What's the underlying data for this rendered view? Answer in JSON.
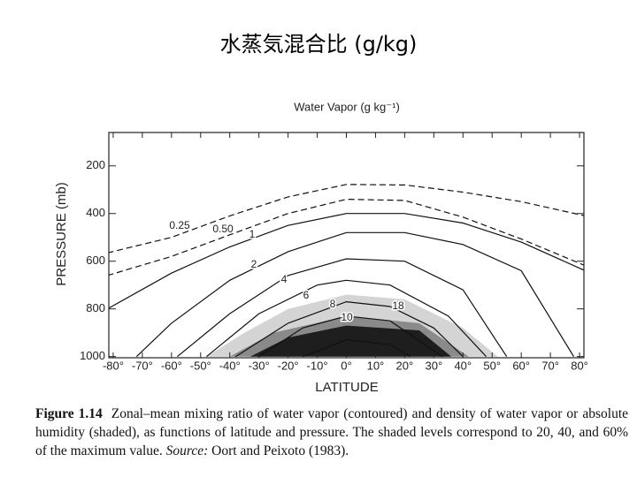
{
  "slide_title": "水蒸気混合比 (g/kg)",
  "chart_data": {
    "type": "contour",
    "title": "Water Vapor (g kg⁻¹)",
    "xlabel": "LATITUDE",
    "ylabel": "PRESSURE (mb)",
    "xlim": [
      -81.5,
      81.5
    ],
    "ylim": [
      1005,
      60
    ],
    "xticks": [
      {
        "value": -80,
        "label": "-80°"
      },
      {
        "value": -70,
        "label": "-70°"
      },
      {
        "value": -60,
        "label": "-60°"
      },
      {
        "value": -50,
        "label": "-50°"
      },
      {
        "value": -40,
        "label": "-40°"
      },
      {
        "value": -30,
        "label": "-30°"
      },
      {
        "value": -20,
        "label": "-20°"
      },
      {
        "value": -10,
        "label": "-10°"
      },
      {
        "value": 0,
        "label": "0°"
      },
      {
        "value": 10,
        "label": "10°"
      },
      {
        "value": 20,
        "label": "20°"
      },
      {
        "value": 30,
        "label": "30°"
      },
      {
        "value": 40,
        "label": "40°"
      },
      {
        "value": 50,
        "label": "50°"
      },
      {
        "value": 60,
        "label": "60°"
      },
      {
        "value": 70,
        "label": "70°"
      },
      {
        "value": 80,
        "label": "80°"
      }
    ],
    "yticks": [
      200,
      400,
      600,
      800,
      1000
    ],
    "shading": [
      {
        "color": "#d4d4d4",
        "x": [
          -48,
          -35,
          -20,
          0,
          20,
          40,
          52
        ],
        "y": [
          1000,
          900,
          800,
          740,
          760,
          880,
          1000
        ]
      },
      {
        "color": "#8a8a8a",
        "x": [
          -40,
          -25,
          0,
          25,
          42
        ],
        "y": [
          1000,
          900,
          830,
          860,
          1000
        ]
      },
      {
        "color": "#1e1e1e",
        "x": [
          -33,
          -20,
          0,
          25,
          36
        ],
        "y": [
          1000,
          920,
          870,
          890,
          1000
        ]
      }
    ],
    "contours": [
      {
        "level": 0.25,
        "style": "dashed",
        "x": [
          -82,
          -60,
          -40,
          -20,
          0,
          20,
          40,
          60,
          82
        ],
        "y": [
          565,
          500,
          410,
          330,
          278,
          280,
          310,
          350,
          410
        ]
      },
      {
        "level": 0.5,
        "label": "0.50",
        "style": "dashed",
        "x": [
          -82,
          -60,
          -40,
          -20,
          0,
          20,
          40,
          60,
          82
        ],
        "y": [
          660,
          580,
          489,
          400,
          340,
          345,
          415,
          507,
          619
        ]
      },
      {
        "level": 1,
        "style": "solid",
        "x": [
          -82,
          -60,
          -40,
          -20,
          0,
          20,
          40,
          60,
          82
        ],
        "y": [
          800,
          650,
          540,
          450,
          400,
          400,
          440,
          520,
          640
        ]
      },
      {
        "level": 2,
        "style": "solid",
        "x": [
          -72,
          -60,
          -40,
          -20,
          0,
          20,
          40,
          60,
          78
        ],
        "y": [
          1000,
          860,
          680,
          560,
          480,
          480,
          530,
          640,
          1000
        ]
      },
      {
        "level": 4,
        "style": "solid",
        "x": [
          -58,
          -40,
          -20,
          0,
          20,
          40,
          55
        ],
        "y": [
          1000,
          820,
          660,
          590,
          600,
          720,
          1000
        ]
      },
      {
        "level": 6,
        "style": "solid",
        "x": [
          -48,
          -30,
          -10,
          0,
          15,
          35,
          48
        ],
        "y": [
          1000,
          820,
          700,
          680,
          700,
          830,
          1000
        ]
      },
      {
        "level": 8,
        "style": "solid",
        "x": [
          -38,
          -20,
          0,
          15,
          30,
          40
        ],
        "y": [
          1000,
          860,
          770,
          790,
          880,
          1000
        ]
      },
      {
        "level": 10,
        "style": "solid",
        "x": [
          -30,
          -15,
          0,
          15,
          33
        ],
        "y": [
          1000,
          880,
          830,
          850,
          1000
        ]
      },
      {
        "level": 18,
        "style": "solid",
        "x": [
          -15,
          0,
          15,
          22
        ],
        "y": [
          1000,
          930,
          950,
          1000
        ]
      }
    ]
  },
  "caption": {
    "figure_label": "Figure 1.14",
    "text": "Zonal–mean mixing ratio of water vapor (contoured) and density of water vapor or absolute humidity (shaded), as functions of latitude and pressure. The shaded levels correspond to 20, 40, and 60% of the maximum value.",
    "source_label": "Source:",
    "source": "Oort and Peixoto (1983)."
  }
}
